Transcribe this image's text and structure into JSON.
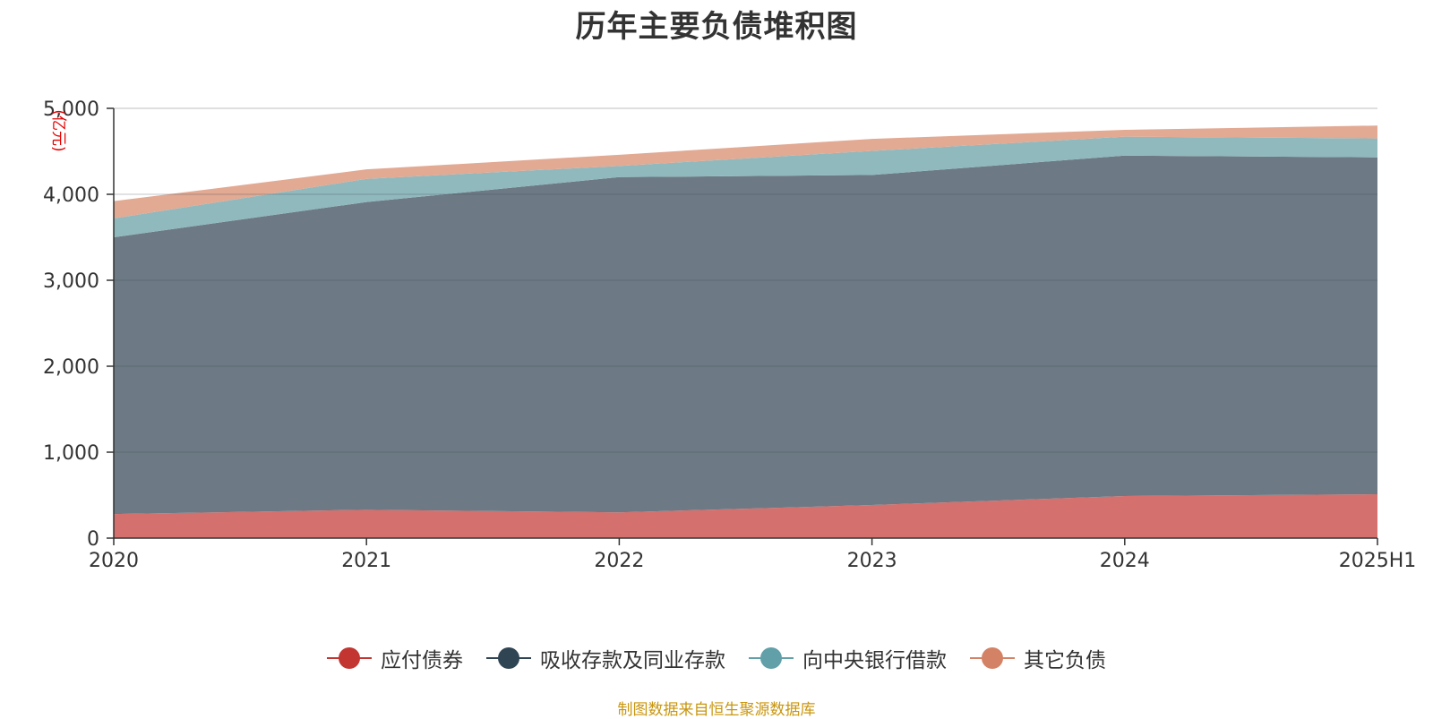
{
  "title": "历年主要负债堆积图",
  "source_note": "制图数据来自恒生聚源数据库",
  "chart_data": {
    "type": "area",
    "stacked": true,
    "title": "历年主要负债堆积图",
    "ylabel": "(亿元)",
    "xlabel": "",
    "x": [
      "2020",
      "2021",
      "2022",
      "2023",
      "2024",
      "2025H1"
    ],
    "ylim": [
      0,
      5000
    ],
    "yticks": [
      0,
      1000,
      2000,
      3000,
      4000,
      5000
    ],
    "ytick_labels": [
      "0",
      "1,000",
      "2,000",
      "3,000",
      "4,000",
      "5,000"
    ],
    "grid": true,
    "legend_position": "bottom",
    "series": [
      {
        "name": "应付债券",
        "color": "#c23531",
        "fill": "#d4706d",
        "values": [
          280,
          330,
          300,
          385,
          490,
          510
        ]
      },
      {
        "name": "吸收存款及同业存款",
        "color": "#2f4554",
        "fill": "#6d7a85",
        "values": [
          3220,
          3580,
          3900,
          3840,
          3960,
          3920
        ]
      },
      {
        "name": "向中央银行借款",
        "color": "#61a0a8",
        "fill": "#90b9be",
        "values": [
          220,
          270,
          130,
          280,
          220,
          220
        ]
      },
      {
        "name": "其它负债",
        "color": "#d48265",
        "fill": "#e2a993",
        "values": [
          200,
          110,
          130,
          140,
          80,
          150
        ]
      }
    ]
  }
}
